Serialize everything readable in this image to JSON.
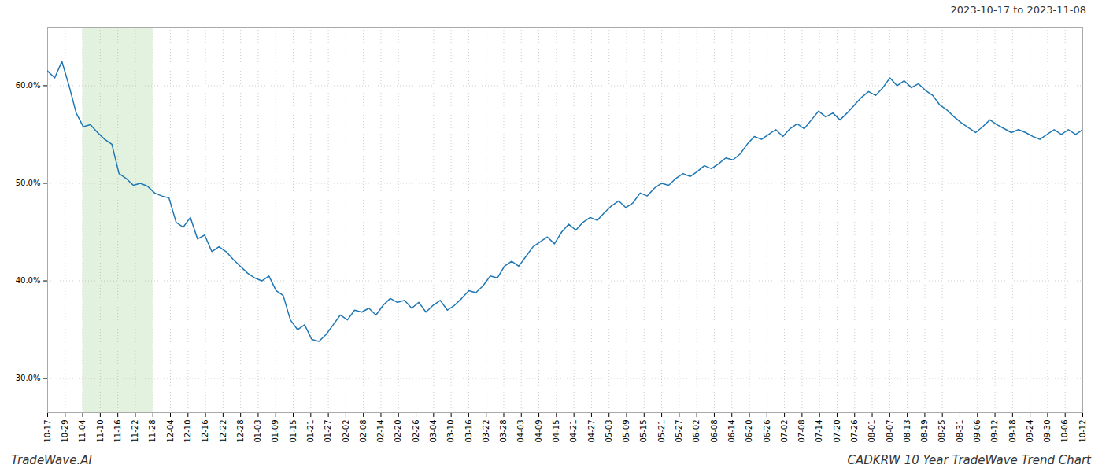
{
  "chart_data": {
    "type": "line",
    "annotations": [
      "2023-10-17 to 2023-11-08",
      "TradeWave.AI",
      "CADKRW 10 Year TradeWave Trend Chart"
    ],
    "color": "#1f77b4",
    "grid": true,
    "shaded_x": [
      2,
      6
    ],
    "shaded_color": "#d6ecd2",
    "xlim": [
      0,
      59
    ],
    "xticks": [
      {
        "value": 0,
        "label": "10-17"
      },
      {
        "value": 1,
        "label": "10-29"
      },
      {
        "value": 2,
        "label": "11-04"
      },
      {
        "value": 3,
        "label": "11-10"
      },
      {
        "value": 4,
        "label": "11-16"
      },
      {
        "value": 5,
        "label": "11-22"
      },
      {
        "value": 6,
        "label": "11-28"
      },
      {
        "value": 7,
        "label": "12-04"
      },
      {
        "value": 8,
        "label": "12-10"
      },
      {
        "value": 9,
        "label": "12-16"
      },
      {
        "value": 10,
        "label": "12-22"
      },
      {
        "value": 11,
        "label": "12-28"
      },
      {
        "value": 12,
        "label": "01-03"
      },
      {
        "value": 13,
        "label": "01-09"
      },
      {
        "value": 14,
        "label": "01-15"
      },
      {
        "value": 15,
        "label": "01-21"
      },
      {
        "value": 16,
        "label": "01-27"
      },
      {
        "value": 17,
        "label": "02-02"
      },
      {
        "value": 18,
        "label": "02-08"
      },
      {
        "value": 19,
        "label": "02-14"
      },
      {
        "value": 20,
        "label": "02-20"
      },
      {
        "value": 21,
        "label": "02-26"
      },
      {
        "value": 22,
        "label": "03-04"
      },
      {
        "value": 23,
        "label": "03-10"
      },
      {
        "value": 24,
        "label": "03-16"
      },
      {
        "value": 25,
        "label": "03-22"
      },
      {
        "value": 26,
        "label": "03-28"
      },
      {
        "value": 27,
        "label": "04-03"
      },
      {
        "value": 28,
        "label": "04-09"
      },
      {
        "value": 29,
        "label": "04-15"
      },
      {
        "value": 30,
        "label": "04-21"
      },
      {
        "value": 31,
        "label": "04-27"
      },
      {
        "value": 32,
        "label": "05-03"
      },
      {
        "value": 33,
        "label": "05-09"
      },
      {
        "value": 34,
        "label": "05-15"
      },
      {
        "value": 35,
        "label": "05-21"
      },
      {
        "value": 36,
        "label": "05-27"
      },
      {
        "value": 37,
        "label": "06-02"
      },
      {
        "value": 38,
        "label": "06-08"
      },
      {
        "value": 39,
        "label": "06-14"
      },
      {
        "value": 40,
        "label": "06-20"
      },
      {
        "value": 41,
        "label": "06-26"
      },
      {
        "value": 42,
        "label": "07-02"
      },
      {
        "value": 43,
        "label": "07-08"
      },
      {
        "value": 44,
        "label": "07-14"
      },
      {
        "value": 45,
        "label": "07-20"
      },
      {
        "value": 46,
        "label": "07-26"
      },
      {
        "value": 47,
        "label": "08-01"
      },
      {
        "value": 48,
        "label": "08-07"
      },
      {
        "value": 49,
        "label": "08-13"
      },
      {
        "value": 50,
        "label": "08-19"
      },
      {
        "value": 51,
        "label": "08-25"
      },
      {
        "value": 52,
        "label": "08-31"
      },
      {
        "value": 53,
        "label": "09-06"
      },
      {
        "value": 54,
        "label": "09-12"
      },
      {
        "value": 55,
        "label": "09-18"
      },
      {
        "value": 56,
        "label": "09-24"
      },
      {
        "value": 57,
        "label": "09-30"
      },
      {
        "value": 58,
        "label": "10-06"
      },
      {
        "value": 59,
        "label": "10-12"
      }
    ],
    "ylim": [
      0.265,
      0.66
    ],
    "yticks": [
      {
        "value": 0.3,
        "label": "30.0%"
      },
      {
        "value": 0.4,
        "label": "40.0%"
      },
      {
        "value": 0.5,
        "label": "50.0%"
      },
      {
        "value": 0.6,
        "label": "60.0%"
      }
    ],
    "x": [
      0,
      0.4069,
      0.8138,
      1.2207,
      1.6276,
      2.0345,
      2.4414,
      2.8483,
      3.2552,
      3.6621,
      4.069,
      4.4759,
      4.8828,
      5.2897,
      5.6966,
      6.1034,
      6.5103,
      6.9172,
      7.3241,
      7.731,
      8.1379,
      8.5448,
      8.9517,
      9.3586,
      9.7655,
      10.1724,
      10.5793,
      10.9862,
      11.3931,
      11.8,
      12.2069,
      12.6138,
      13.0207,
      13.4276,
      13.8345,
      14.2414,
      14.6483,
      15.0552,
      15.4621,
      15.869,
      16.2759,
      16.6828,
      17.0897,
      17.4966,
      17.9034,
      18.3103,
      18.7172,
      19.1241,
      19.531,
      19.9379,
      20.3448,
      20.7517,
      21.1586,
      21.5655,
      21.9724,
      22.3793,
      22.7862,
      23.1931,
      23.6,
      24.0069,
      24.4138,
      24.8207,
      25.2276,
      25.6345,
      26.0414,
      26.4483,
      26.8552,
      27.2621,
      27.669,
      28.0759,
      28.4828,
      28.8897,
      29.2966,
      29.7034,
      30.1103,
      30.5172,
      30.9241,
      31.331,
      31.7379,
      32.1448,
      32.5517,
      32.9586,
      33.3655,
      33.7724,
      34.1793,
      34.5862,
      34.9931,
      35.4,
      35.8069,
      36.2138,
      36.6207,
      37.0276,
      37.4345,
      37.8414,
      38.2483,
      38.6552,
      39.0621,
      39.469,
      39.8759,
      40.2828,
      40.6897,
      41.0966,
      41.5034,
      41.9103,
      42.3172,
      42.7241,
      43.131,
      43.5379,
      43.9448,
      44.3517,
      44.7586,
      45.1655,
      45.5724,
      45.9793,
      46.3862,
      46.7931,
      47.2,
      47.6069,
      48.0138,
      48.4207,
      48.8276,
      49.2345,
      49.6414,
      50.0483,
      50.4552,
      50.8621,
      51.269,
      51.6759,
      52.0828,
      52.4897,
      52.8966,
      53.3034,
      53.7103,
      54.1172,
      54.5241,
      54.931,
      55.3379,
      55.7448,
      56.1517,
      56.5586,
      56.9655,
      57.3724,
      57.7793,
      58.1862,
      58.5931,
      59
    ],
    "values": [
      0.615,
      0.608,
      0.625,
      0.6,
      0.572,
      0.558,
      0.56,
      0.552,
      0.545,
      0.54,
      0.51,
      0.505,
      0.498,
      0.5,
      0.497,
      0.49,
      0.487,
      0.485,
      0.46,
      0.455,
      0.465,
      0.443,
      0.447,
      0.43,
      0.435,
      0.43,
      0.422,
      0.415,
      0.408,
      0.403,
      0.4,
      0.405,
      0.39,
      0.385,
      0.36,
      0.35,
      0.355,
      0.34,
      0.338,
      0.345,
      0.355,
      0.365,
      0.36,
      0.37,
      0.368,
      0.372,
      0.365,
      0.375,
      0.382,
      0.378,
      0.38,
      0.372,
      0.378,
      0.368,
      0.375,
      0.38,
      0.37,
      0.375,
      0.382,
      0.39,
      0.388,
      0.395,
      0.405,
      0.403,
      0.415,
      0.42,
      0.415,
      0.425,
      0.435,
      0.44,
      0.445,
      0.438,
      0.45,
      0.458,
      0.452,
      0.46,
      0.465,
      0.462,
      0.47,
      0.477,
      0.482,
      0.475,
      0.48,
      0.49,
      0.487,
      0.495,
      0.5,
      0.498,
      0.505,
      0.51,
      0.507,
      0.512,
      0.518,
      0.515,
      0.52,
      0.526,
      0.524,
      0.53,
      0.54,
      0.548,
      0.545,
      0.55,
      0.555,
      0.548,
      0.556,
      0.561,
      0.556,
      0.565,
      0.574,
      0.568,
      0.572,
      0.565,
      0.572,
      0.58,
      0.588,
      0.594,
      0.59,
      0.598,
      0.608,
      0.6,
      0.605,
      0.598,
      0.602,
      0.595,
      0.59,
      0.58,
      0.575,
      0.568,
      0.562,
      0.557,
      0.552,
      0.558,
      0.565,
      0.56,
      0.556,
      0.552,
      0.555,
      0.552,
      0.548,
      0.545,
      0.55,
      0.555,
      0.55,
      0.555,
      0.55,
      0.555
    ]
  }
}
